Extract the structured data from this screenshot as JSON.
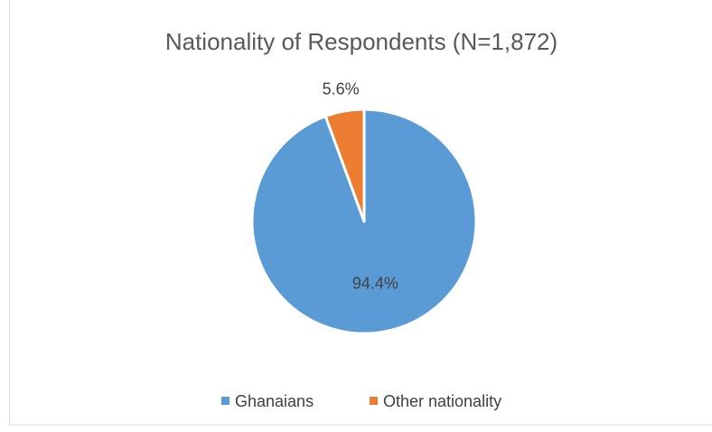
{
  "chart_data": {
    "type": "pie",
    "title": "Nationality of Respondents (N=1,872)",
    "categories": [
      "Ghanaians",
      "Other nationality"
    ],
    "values": [
      94.4,
      5.6
    ],
    "value_labels": [
      "94.4%",
      "5.6%"
    ],
    "colors": [
      "#5b9bd5",
      "#ed7d31"
    ],
    "legend": "bottom"
  }
}
